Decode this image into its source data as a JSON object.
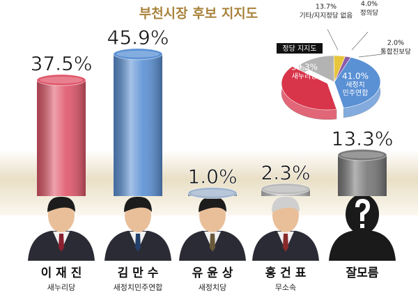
{
  "chart_data": [
    {
      "type": "bar",
      "title": "부천시장 후보 지지도",
      "categories": [
        "이 재 진",
        "김 만 수",
        "유 윤 상",
        "홍 건 표",
        "잘모름"
      ],
      "parties": [
        "새누리당",
        "새정치민주연합",
        "새정치당",
        "무소속",
        null
      ],
      "values": [
        37.5,
        45.9,
        1.0,
        2.3,
        13.3
      ],
      "value_labels": [
        "37.5%",
        "45.9%",
        "1.0%",
        "2.3%",
        "13.3%"
      ],
      "colors": [
        "#e0566a",
        "#5a90d4",
        "#9fb4cc",
        "#b9b9b9",
        "#777777"
      ]
    },
    {
      "type": "pie",
      "title": "정당 지지도",
      "categories": [
        "기타/지지정당 없음",
        "정의당",
        "통합진보당",
        "새정치 민주연합",
        "새누리당"
      ],
      "values": [
        13.7,
        4.0,
        2.0,
        41.0,
        39.3
      ],
      "value_labels": [
        "13.7%",
        "4.0%",
        "2.0%",
        "41.0%",
        "39.3%"
      ],
      "colors": [
        "#b3b3b3",
        "#e8c53c",
        "#8c5aa8",
        "#5a90d4",
        "#d8344a"
      ]
    }
  ]
}
